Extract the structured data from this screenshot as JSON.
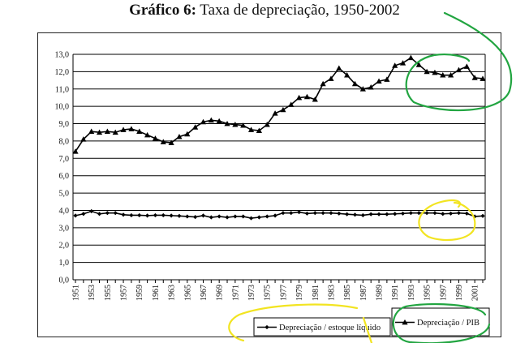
{
  "title_bold": "Gráfico 6:",
  "title_rest": " Taxa de depreciação, 1950-2002",
  "chart_data": {
    "type": "line",
    "title": "Gráfico 6: Taxa de depreciação, 1950-2002",
    "xlabel": "",
    "ylabel": "",
    "ylim": [
      0,
      13
    ],
    "y_ticks": [
      "0,0",
      "1,0",
      "2,0",
      "3,0",
      "4,0",
      "5,0",
      "6,0",
      "7,0",
      "8,0",
      "9,0",
      "10,0",
      "11,0",
      "12,0",
      "13,0"
    ],
    "x_tick_labels": [
      "1951",
      "1953",
      "1955",
      "1957",
      "1959",
      "1961",
      "1963",
      "1965",
      "1967",
      "1969",
      "1971",
      "1973",
      "1975",
      "1977",
      "1979",
      "1981",
      "1983",
      "1985",
      "1987",
      "1989",
      "1991",
      "1993",
      "1995",
      "1997",
      "1999",
      "2001"
    ],
    "grid": "horizontal",
    "legend_position": "bottom",
    "x": [
      1951,
      1952,
      1953,
      1954,
      1955,
      1956,
      1957,
      1958,
      1959,
      1960,
      1961,
      1962,
      1963,
      1964,
      1965,
      1966,
      1967,
      1968,
      1969,
      1970,
      1971,
      1972,
      1973,
      1974,
      1975,
      1976,
      1977,
      1978,
      1979,
      1980,
      1981,
      1982,
      1983,
      1984,
      1985,
      1986,
      1987,
      1988,
      1989,
      1990,
      1991,
      1992,
      1993,
      1994,
      1995,
      1996,
      1997,
      1998,
      1999,
      2000,
      2001,
      2002
    ],
    "series": [
      {
        "name": "Depreciação / estoque líquido",
        "marker": "diamond",
        "values": [
          3.7,
          3.8,
          3.95,
          3.8,
          3.85,
          3.85,
          3.75,
          3.72,
          3.72,
          3.7,
          3.72,
          3.72,
          3.7,
          3.68,
          3.65,
          3.62,
          3.7,
          3.6,
          3.65,
          3.6,
          3.65,
          3.65,
          3.55,
          3.6,
          3.65,
          3.7,
          3.85,
          3.85,
          3.9,
          3.82,
          3.85,
          3.85,
          3.85,
          3.82,
          3.78,
          3.75,
          3.72,
          3.78,
          3.78,
          3.78,
          3.8,
          3.82,
          3.85,
          3.85,
          3.85,
          3.85,
          3.8,
          3.82,
          3.85,
          3.82,
          3.65,
          3.68
        ]
      },
      {
        "name": "Depreciação / PIB",
        "marker": "triangle",
        "values": [
          7.4,
          8.1,
          8.55,
          8.5,
          8.55,
          8.5,
          8.65,
          8.7,
          8.55,
          8.35,
          8.15,
          7.95,
          7.9,
          8.25,
          8.4,
          8.8,
          9.1,
          9.2,
          9.15,
          9.0,
          8.95,
          8.9,
          8.65,
          8.6,
          8.95,
          9.6,
          9.8,
          10.1,
          10.5,
          10.55,
          10.4,
          11.3,
          11.6,
          12.2,
          11.8,
          11.3,
          11.0,
          11.1,
          11.45,
          11.55,
          12.35,
          12.5,
          12.8,
          12.4,
          12.0,
          11.95,
          11.8,
          11.8,
          12.1,
          12.3,
          11.65,
          11.6
        ]
      }
    ]
  }
}
